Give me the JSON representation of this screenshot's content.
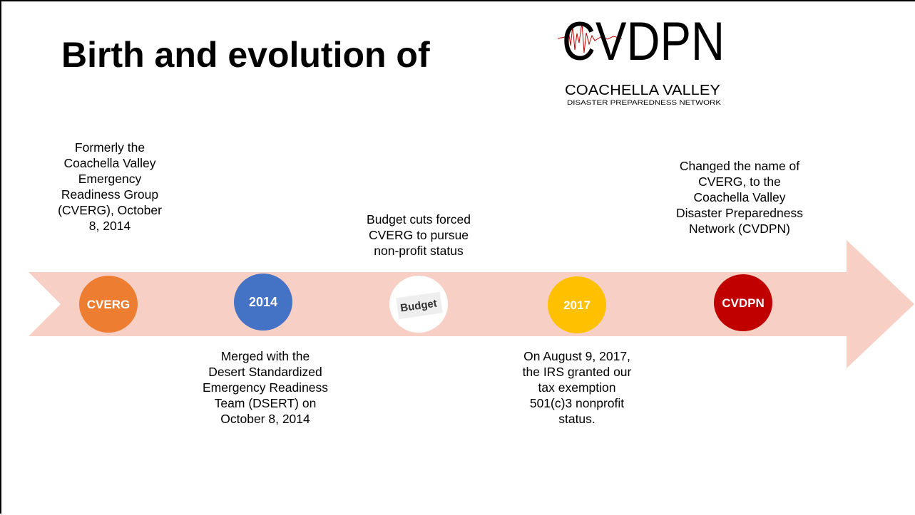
{
  "title": "Birth and evolution of",
  "logo": {
    "name": "CVDPN",
    "line1": "COACHELLA VALLEY",
    "line2": "DISASTER PREPAREDNESS NETWORK"
  },
  "timeline": [
    {
      "label": "CVERG",
      "text": "Formerly the Coachella Valley Emergency Readiness Group (CVERG), October 8, 2014"
    },
    {
      "label": "2014",
      "text": "Merged with the Desert Standardized Emergency Readiness Team (DSERT) on October 8, 2014"
    },
    {
      "label": "Budget",
      "text": "Budget cuts forced CVERG to pursue non-profit status"
    },
    {
      "label": "2017",
      "text": "On August 9, 2017, the IRS granted our tax exemption 501(c)3 nonprofit status."
    },
    {
      "label": "CVDPN",
      "text": "Changed the name of CVERG, to the Coachella Valley Disaster Preparedness Network (CVDPN)"
    }
  ]
}
